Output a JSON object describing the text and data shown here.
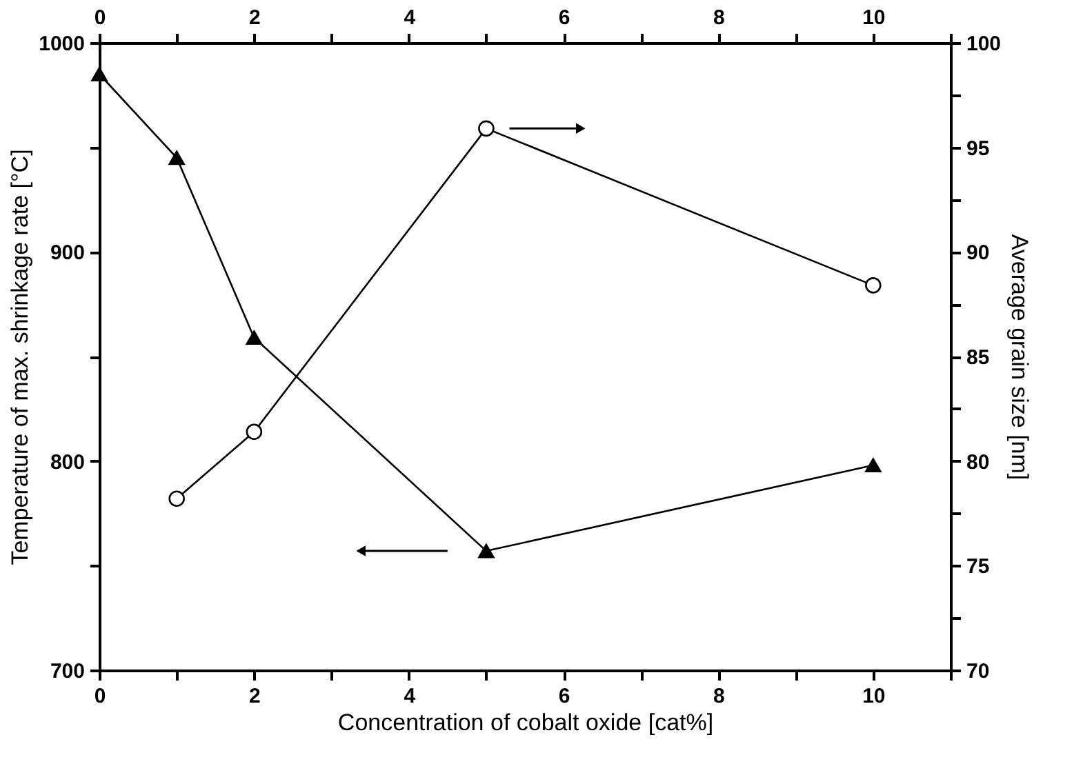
{
  "chart_data": {
    "type": "line",
    "xlabel": "Concentration of cobalt oxide [cat%]",
    "ylabel": "Temperature of max. shrinkage rate [°C]",
    "y2label": "Average grain size [nm]",
    "x": [
      0,
      1,
      2,
      5,
      10
    ],
    "xlim": [
      0,
      11
    ],
    "xticks": [
      0,
      {
        "value": 1,
        "label": null
      },
      2,
      {
        "value": 3,
        "label": null
      },
      4,
      {
        "value": 5,
        "label": null
      },
      6,
      {
        "value": 7,
        "label": null
      },
      8,
      {
        "value": 9,
        "label": null
      },
      10,
      {
        "value": 11,
        "label": null
      }
    ],
    "x2lim": [
      0,
      11
    ],
    "x2ticks": [
      0,
      {
        "value": 1,
        "label": null
      },
      2,
      {
        "value": 3,
        "label": null
      },
      4,
      {
        "value": 5,
        "label": null
      },
      6,
      {
        "value": 7,
        "label": null
      },
      8,
      {
        "value": 9,
        "label": null
      },
      10,
      {
        "value": 11,
        "label": null
      }
    ],
    "ylim": [
      700,
      1000
    ],
    "yticks": [
      700,
      {
        "value": 750,
        "label": null
      },
      800,
      {
        "value": 850,
        "label": null
      },
      900,
      {
        "value": 950,
        "label": null
      },
      1000
    ],
    "y2lim": [
      70,
      100
    ],
    "y2ticks": [
      70,
      {
        "value": 72.5,
        "label": null
      },
      75,
      {
        "value": 77.5,
        "label": null
      },
      80,
      {
        "value": 82.5,
        "label": null
      },
      85,
      {
        "value": 87.5,
        "label": null
      },
      90,
      {
        "value": 92.5,
        "label": null
      },
      95,
      {
        "value": 97.5,
        "label": null
      },
      100
    ],
    "grid": false,
    "line_style": "solid",
    "series": [
      {
        "color": "#000000",
        "marker": "triangle",
        "values": [
          985,
          945,
          859,
          757,
          798
        ]
      },
      {
        "color": "#000000",
        "marker": "circle",
        "axis": "y2",
        "x": [
          1,
          2,
          5,
          10
        ],
        "values": [
          78.2,
          81.4,
          95.9,
          88.4
        ]
      }
    ]
  }
}
